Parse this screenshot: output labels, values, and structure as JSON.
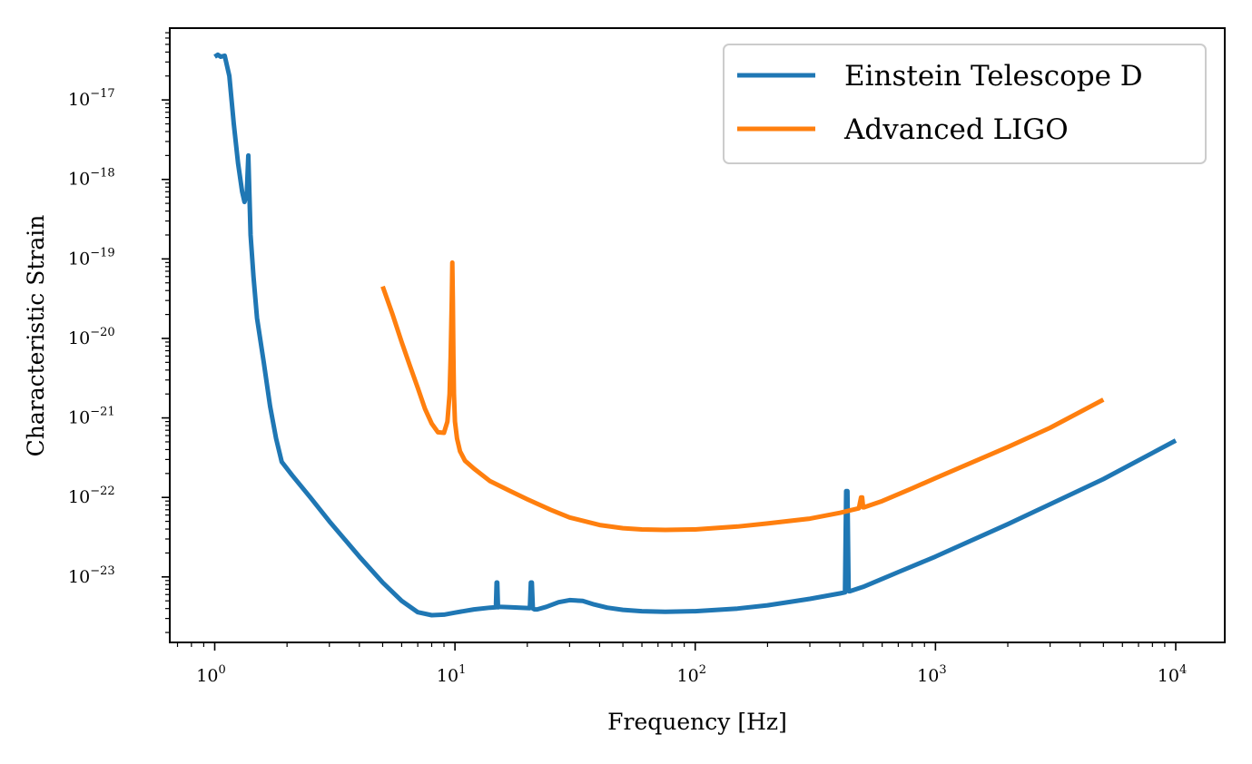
{
  "chart_data": {
    "type": "line",
    "title": "",
    "xlabel": "Frequency [Hz]",
    "ylabel": "Characteristic Strain",
    "xscale": "log",
    "yscale": "log",
    "xlim": [
      0.65,
      16000
    ],
    "ylim": [
      1.5e-24,
      8e-17
    ],
    "x_ticks": [
      {
        "base": "10",
        "exp": "0",
        "value": 1
      },
      {
        "base": "10",
        "exp": "1",
        "value": 10
      },
      {
        "base": "10",
        "exp": "2",
        "value": 100
      },
      {
        "base": "10",
        "exp": "3",
        "value": 1000
      },
      {
        "base": "10",
        "exp": "4",
        "value": 10000
      }
    ],
    "y_ticks": [
      {
        "base": "10",
        "exp": "−17",
        "value": 1e-17
      },
      {
        "base": "10",
        "exp": "−18",
        "value": 1e-18
      },
      {
        "base": "10",
        "exp": "−19",
        "value": 1e-19
      },
      {
        "base": "10",
        "exp": "−20",
        "value": 1e-20
      },
      {
        "base": "10",
        "exp": "−21",
        "value": 1e-21
      },
      {
        "base": "10",
        "exp": "−22",
        "value": 1e-22
      },
      {
        "base": "10",
        "exp": "−23",
        "value": 1e-23
      }
    ],
    "grid": false,
    "legend_position": "top-right",
    "series": [
      {
        "name": "Einstein Telescope D",
        "color": "#1f77b4",
        "x": [
          1.0,
          1.03,
          1.06,
          1.1,
          1.15,
          1.2,
          1.25,
          1.3,
          1.33,
          1.36,
          1.38,
          1.41,
          1.45,
          1.5,
          1.6,
          1.7,
          1.8,
          1.9,
          2.1,
          2.5,
          3.0,
          4.0,
          5.0,
          6.0,
          7.0,
          8.0,
          9.0,
          10.0,
          12.0,
          14.0,
          14.8,
          14.9,
          15.0,
          15.1,
          15.2,
          17.0,
          20.5,
          20.7,
          20.9,
          21.1,
          21.4,
          22.0,
          24.0,
          27.0,
          30.0,
          34.0,
          38.0,
          43.0,
          50.0,
          60.0,
          75.0,
          100.0,
          150.0,
          200.0,
          300.0,
          400.0,
          420.0,
          425.0,
          430.0,
          435.0,
          440.0,
          500.0,
          700.0,
          1000.0,
          2000.0,
          5000.0,
          10000.0
        ],
        "y": [
          3.5e-17,
          3.7e-17,
          3.5e-17,
          3.6e-17,
          2e-17,
          5e-18,
          1.6e-18,
          7e-19,
          5.2e-19,
          6.5e-19,
          2e-18,
          2e-19,
          6e-20,
          1.8e-20,
          5e-21,
          1.4e-21,
          5.5e-22,
          2.8e-22,
          1.9e-22,
          1e-22,
          5e-23,
          1.8e-23,
          8.5e-24,
          5e-24,
          3.6e-24,
          3.3e-24,
          3.35e-24,
          3.55e-24,
          3.9e-24,
          4.1e-24,
          4.15e-24,
          8.5e-24,
          8.5e-24,
          4.15e-24,
          4.2e-24,
          4.15e-24,
          4.05e-24,
          8.5e-24,
          8.5e-24,
          4e-24,
          3.9e-24,
          3.9e-24,
          4.2e-24,
          4.8e-24,
          5.1e-24,
          5e-24,
          4.5e-24,
          4.1e-24,
          3.85e-24,
          3.7e-24,
          3.65e-24,
          3.7e-24,
          4e-24,
          4.4e-24,
          5.3e-24,
          6.2e-24,
          6.4e-24,
          1.2e-22,
          1.2e-22,
          6.6e-24,
          6.6e-24,
          7.5e-24,
          1.15e-23,
          1.8e-23,
          4.6e-23,
          1.7e-22,
          5.2e-22
        ]
      },
      {
        "name": "Advanced LIGO",
        "color": "#ff7f0e",
        "x": [
          5.0,
          5.5,
          6.0,
          6.5,
          7.0,
          7.5,
          8.0,
          8.5,
          9.0,
          9.3,
          9.5,
          9.6,
          9.7,
          9.75,
          9.8,
          9.85,
          9.9,
          10.0,
          10.2,
          10.5,
          11.0,
          12.0,
          14.0,
          17.0,
          20.0,
          25.0,
          30.0,
          40.0,
          50.0,
          60.0,
          75.0,
          100.0,
          150.0,
          200.0,
          300.0,
          400.0,
          480.0,
          490.0,
          495.0,
          500.0,
          505.0,
          510.0,
          600.0,
          800.0,
          1000.0,
          2000.0,
          3000.0,
          5000.0
        ],
        "y": [
          4.5e-20,
          2e-20,
          9e-21,
          4.5e-21,
          2.4e-21,
          1.3e-21,
          8.5e-22,
          6.6e-22,
          6.5e-22,
          9e-22,
          2e-21,
          6e-21,
          3e-20,
          9e-20,
          3e-20,
          6e-21,
          2e-21,
          9e-22,
          5.5e-22,
          3.8e-22,
          2.9e-22,
          2.3e-22,
          1.6e-22,
          1.2e-22,
          9.5e-23,
          7e-23,
          5.6e-23,
          4.5e-23,
          4.1e-23,
          3.95e-23,
          3.9e-23,
          3.95e-23,
          4.3e-23,
          4.7e-23,
          5.4e-23,
          6.4e-23,
          7.3e-23,
          1e-22,
          1e-22,
          7.5e-23,
          7.5e-23,
          7.6e-23,
          9e-23,
          1.3e-22,
          1.75e-22,
          4.3e-22,
          7.5e-22,
          1.7e-21
        ]
      }
    ]
  }
}
